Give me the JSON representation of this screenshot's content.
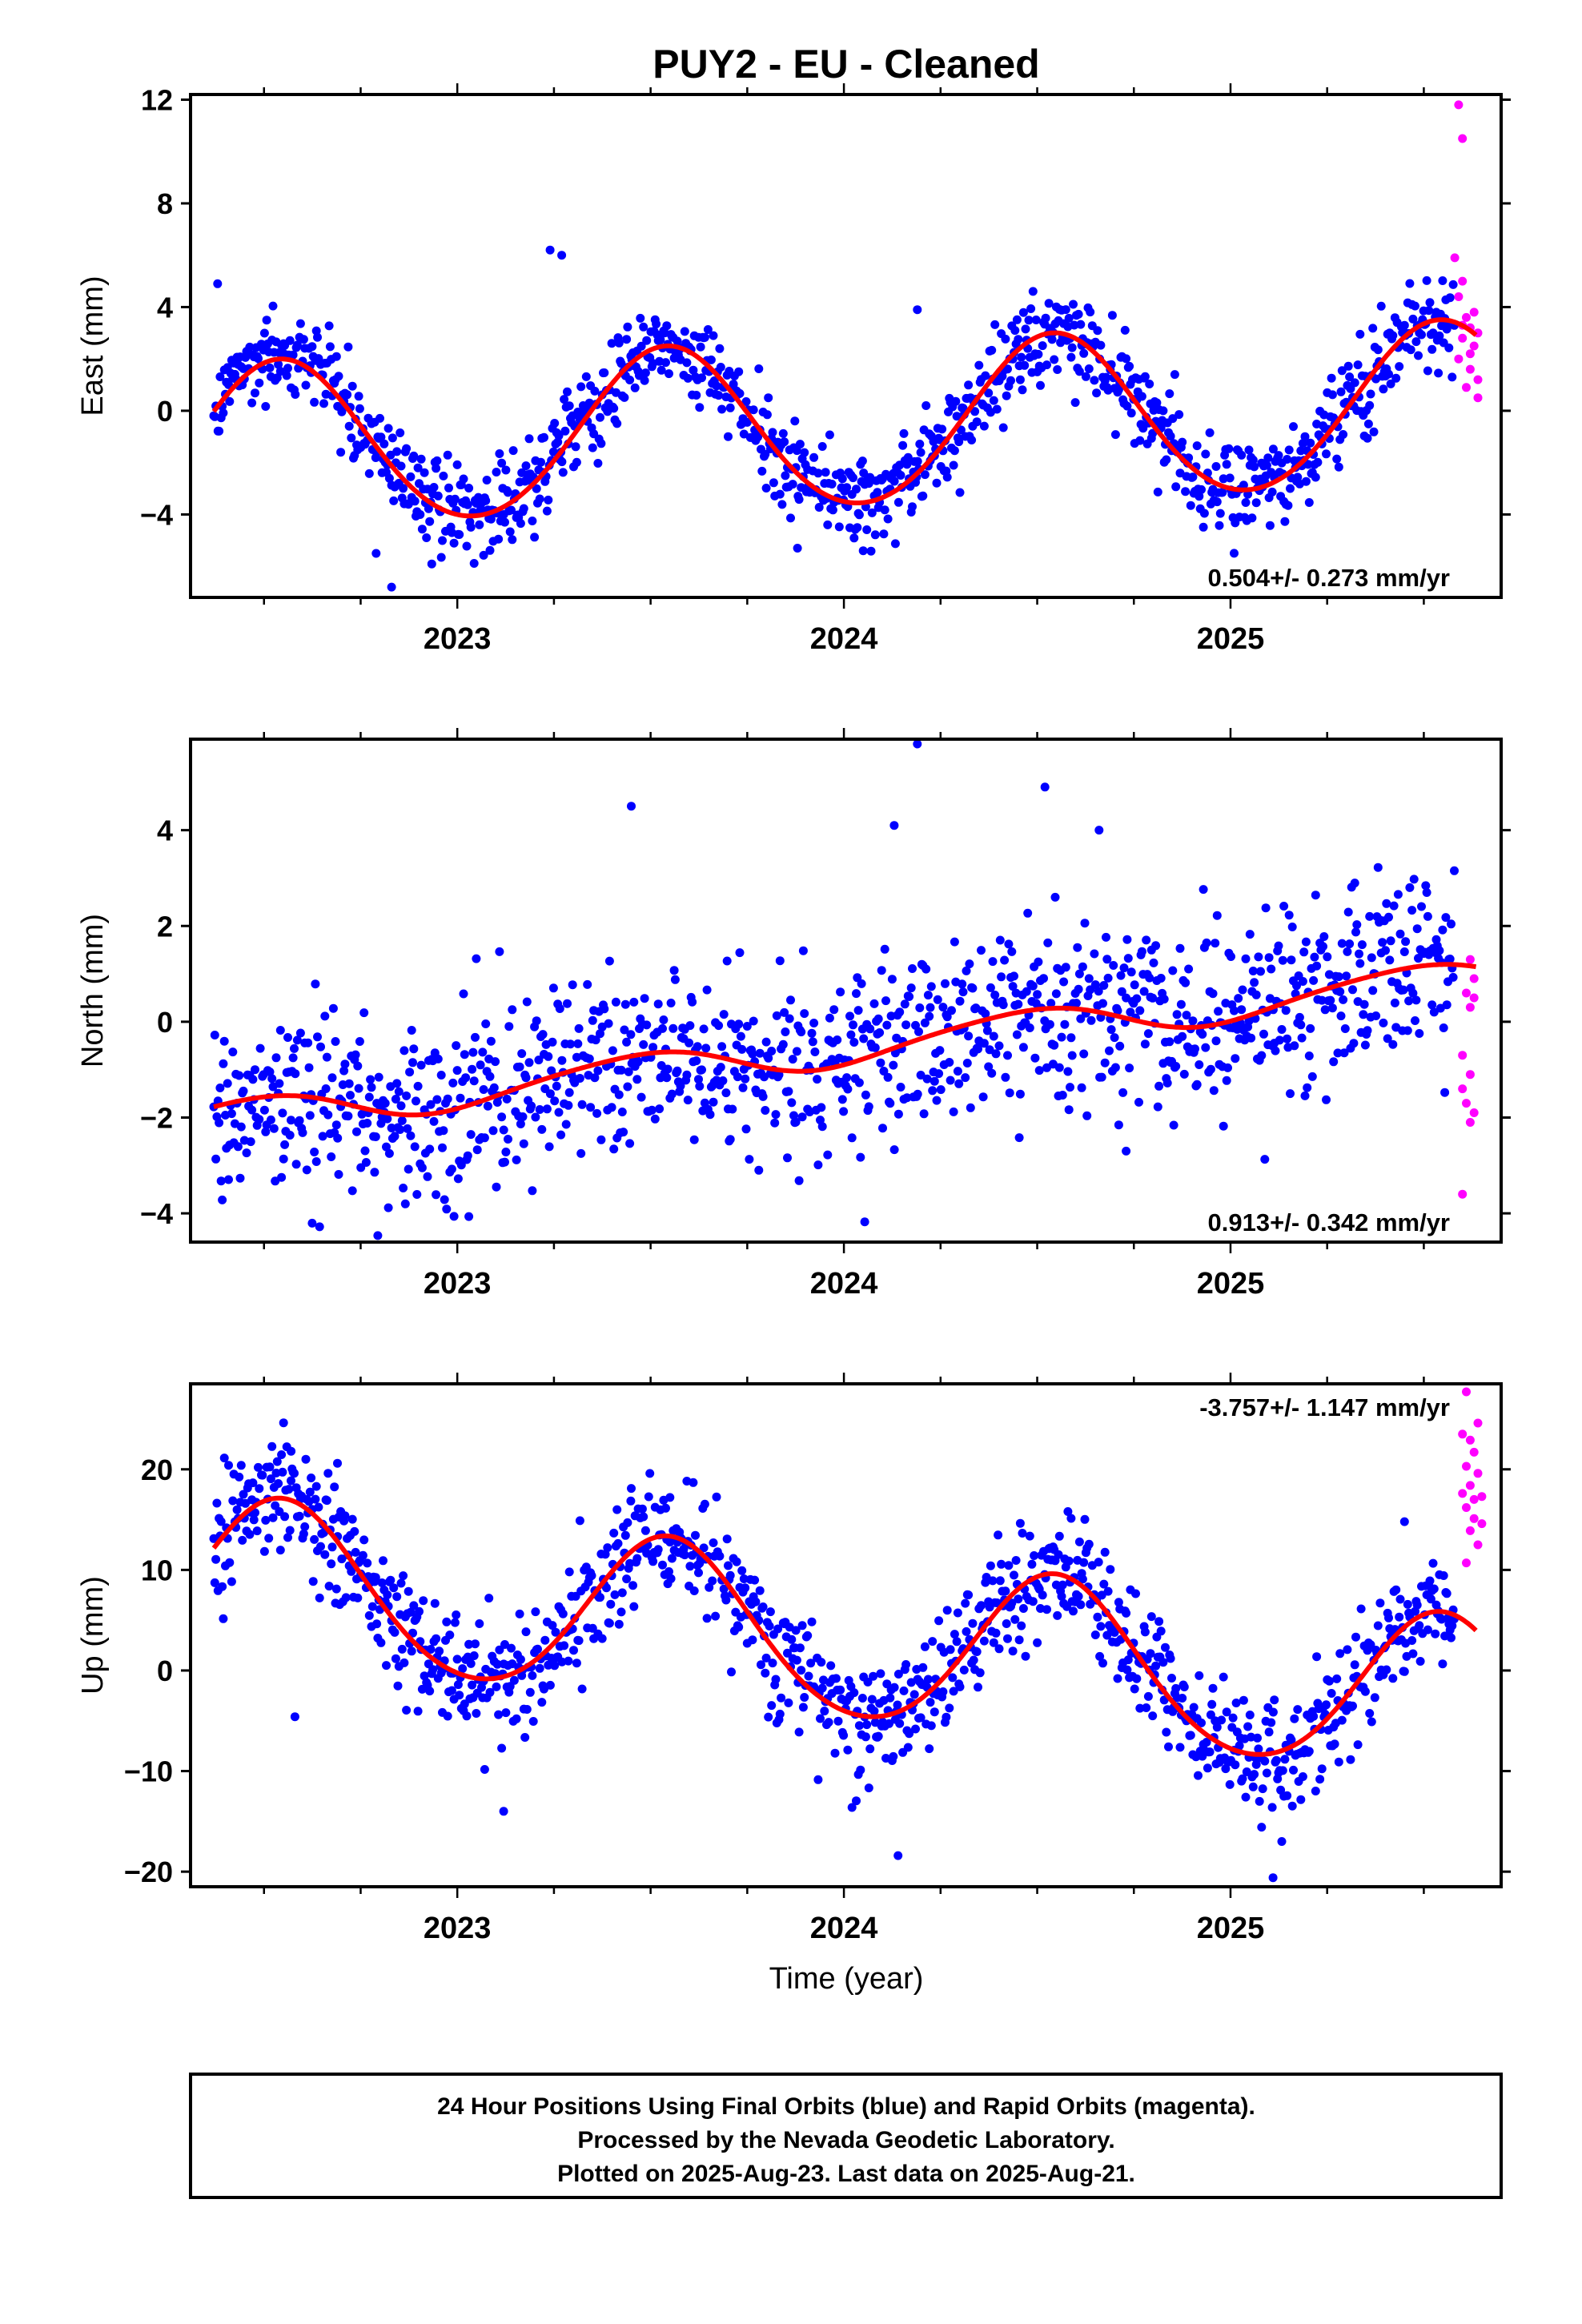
{
  "title": "PUY2  - EU - Cleaned",
  "x_axis_label": "Time (year)",
  "footer": {
    "line1": "24 Hour Positions Using Final Orbits (blue) and Rapid Orbits (magenta).",
    "line2": "Processed by the Nevada Geodetic Laboratory.",
    "line3": "Plotted on 2025-Aug-23. Last data on 2025-Aug-21."
  },
  "colors": {
    "final_orbits": "#0000ff",
    "rapid_orbits": "#ff00ff",
    "model": "#ff0000"
  },
  "chart_data": [
    {
      "type": "scatter",
      "ylabel": "East (mm)",
      "xlim": [
        2022.31,
        2025.7
      ],
      "ylim": [
        -7.2,
        12.2
      ],
      "yticks": [
        -4,
        0,
        4,
        8,
        12
      ],
      "ytick_labels": [
        "−4",
        "0",
        "4",
        "8",
        "12"
      ],
      "xticks": [
        2023,
        2024,
        2025
      ],
      "xtick_labels": [
        "2023",
        "2024",
        "2025"
      ],
      "rate": "0.504+/- 0.273 mm/yr",
      "rate_position": "bottom-right",
      "model": {
        "offset": -0.6,
        "rate": 0.504,
        "amp_cos": -3.05,
        "amp_sin": -0.8,
        "amp_cos2": 0.15,
        "amp_sin2": 0.1
      },
      "series": [
        {
          "source": "final",
          "noise": 0.9,
          "x_range": [
            2022.37,
            2025.58
          ],
          "outliers": [
            [
              2022.38,
              4.9
            ],
            [
              2022.79,
              -5.5
            ],
            [
              2022.83,
              -6.8
            ],
            [
              2023.24,
              6.2
            ],
            [
              2023.27,
              6.0
            ],
            [
              2024.19,
              3.9
            ],
            [
              2023.88,
              -5.3
            ],
            [
              2024.05,
              -5.4
            ]
          ]
        },
        {
          "source": "rapid",
          "points": [
            [
              2025.59,
              11.8
            ],
            [
              2025.6,
              10.5
            ],
            [
              2025.58,
              5.9
            ],
            [
              2025.6,
              5.0
            ],
            [
              2025.59,
              4.4
            ],
            [
              2025.61,
              3.6
            ],
            [
              2025.62,
              3.2
            ],
            [
              2025.6,
              2.8
            ],
            [
              2025.63,
              2.5
            ],
            [
              2025.59,
              2.0
            ],
            [
              2025.62,
              1.6
            ],
            [
              2025.64,
              1.2
            ],
            [
              2025.61,
              0.9
            ],
            [
              2025.64,
              0.5
            ],
            [
              2025.63,
              3.8
            ],
            [
              2025.6,
              3.3
            ],
            [
              2025.62,
              2.2
            ],
            [
              2025.64,
              3.0
            ]
          ]
        }
      ]
    },
    {
      "type": "scatter",
      "ylabel": "North (mm)",
      "xlim": [
        2022.31,
        2025.7
      ],
      "ylim": [
        -4.6,
        5.9
      ],
      "yticks": [
        -4,
        -2,
        0,
        2,
        4
      ],
      "ytick_labels": [
        "−4",
        "−2",
        "0",
        "2",
        "4"
      ],
      "xticks": [
        2023,
        2024,
        2025
      ],
      "xtick_labels": [
        "2023",
        "2024",
        "2025"
      ],
      "rate": "0.913+/- 0.342 mm/yr",
      "rate_position": "bottom-right",
      "model": {
        "offset": -0.55,
        "rate": 0.913,
        "amp_cos": -0.35,
        "amp_sin": 0.1,
        "amp_cos2": 0.0,
        "amp_sin2": 0.05
      },
      "series": [
        {
          "source": "final",
          "noise": 0.95,
          "x_range": [
            2022.37,
            2025.58
          ],
          "outliers": [
            [
              2023.45,
              4.5
            ],
            [
              2024.19,
              5.8
            ],
            [
              2024.13,
              4.1
            ],
            [
              2024.52,
              4.9
            ],
            [
              2024.66,
              4.0
            ],
            [
              2023.78,
              -3.1
            ],
            [
              2024.73,
              -2.7
            ]
          ]
        },
        {
          "source": "rapid",
          "points": [
            [
              2025.62,
              1.3
            ],
            [
              2025.63,
              0.9
            ],
            [
              2025.61,
              0.6
            ],
            [
              2025.62,
              0.3
            ],
            [
              2025.6,
              -0.7
            ],
            [
              2025.62,
              -1.1
            ],
            [
              2025.6,
              -1.4
            ],
            [
              2025.61,
              -1.7
            ],
            [
              2025.63,
              -1.9
            ],
            [
              2025.62,
              -2.1
            ],
            [
              2025.6,
              -3.6
            ],
            [
              2025.63,
              0.5
            ]
          ]
        }
      ]
    },
    {
      "type": "scatter",
      "ylabel": "Up (mm)",
      "xlim": [
        2022.31,
        2025.7
      ],
      "ylim": [
        -21.5,
        28.5
      ],
      "yticks": [
        -20,
        -10,
        0,
        10,
        20
      ],
      "ytick_labels": [
        "−20",
        "−10",
        "0",
        "10",
        "20"
      ],
      "xticks": [
        2023,
        2024,
        2025
      ],
      "xtick_labels": [
        "2023",
        "2024",
        "2025"
      ],
      "rate": "-3.757+/- 1.147 mm/yr",
      "rate_position": "top-right",
      "model": {
        "offset": 3.0,
        "rate": -3.757,
        "amp_cos": -7.6,
        "amp_sin": -2.5,
        "amp_cos2": 0.6,
        "amp_sin2": 0.3
      },
      "series": [
        {
          "source": "final",
          "noise": 3.0,
          "x_range": [
            2022.37,
            2025.58
          ],
          "outliers": [
            [
              2022.57,
              21.8
            ],
            [
              2022.69,
              20.6
            ],
            [
              2023.45,
              18.1
            ],
            [
              2023.55,
              17.2
            ],
            [
              2024.14,
              -18.4
            ],
            [
              2025.11,
              -20.6
            ],
            [
              2025.45,
              14.8
            ],
            [
              2022.58,
              -4.6
            ],
            [
              2023.12,
              -14.0
            ]
          ]
        },
        {
          "source": "rapid",
          "points": [
            [
              2025.61,
              27.7
            ],
            [
              2025.6,
              23.5
            ],
            [
              2025.62,
              22.9
            ],
            [
              2025.64,
              24.6
            ],
            [
              2025.63,
              21.7
            ],
            [
              2025.61,
              20.3
            ],
            [
              2025.64,
              19.6
            ],
            [
              2025.62,
              18.4
            ],
            [
              2025.6,
              17.6
            ],
            [
              2025.63,
              17.0
            ],
            [
              2025.65,
              17.3
            ],
            [
              2025.61,
              16.2
            ],
            [
              2025.63,
              15.1
            ],
            [
              2025.65,
              14.6
            ],
            [
              2025.62,
              13.9
            ],
            [
              2025.64,
              12.5
            ],
            [
              2025.61,
              10.7
            ]
          ]
        }
      ]
    }
  ]
}
